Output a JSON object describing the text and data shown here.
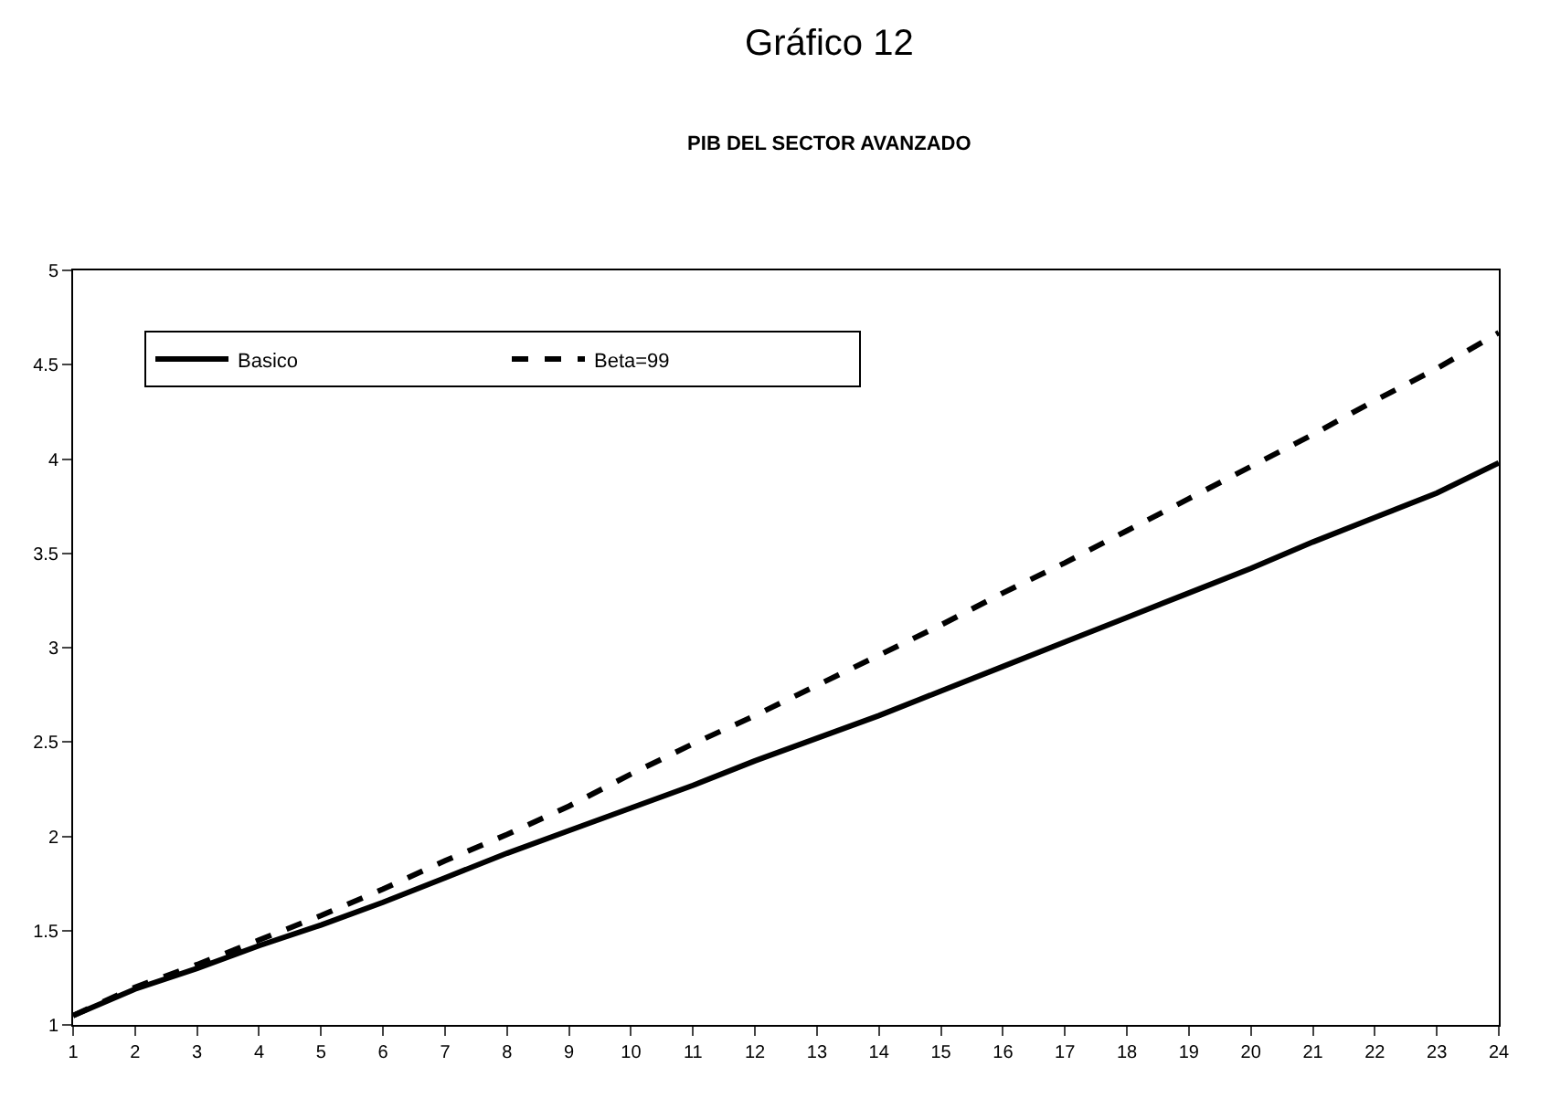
{
  "chart_data": {
    "type": "line",
    "title": "Gráfico 12",
    "subtitle": "PIB DEL SECTOR AVANZADO",
    "x": [
      1,
      2,
      3,
      4,
      5,
      6,
      7,
      8,
      9,
      10,
      11,
      12,
      13,
      14,
      15,
      16,
      17,
      18,
      19,
      20,
      21,
      22,
      23,
      24
    ],
    "xlim": [
      1,
      24
    ],
    "xticks": [
      1,
      2,
      3,
      4,
      5,
      6,
      7,
      8,
      9,
      10,
      11,
      12,
      13,
      14,
      15,
      16,
      17,
      18,
      19,
      20,
      21,
      22,
      23,
      24
    ],
    "ylim": [
      1,
      5
    ],
    "yticks": [
      1,
      1.5,
      2,
      2.5,
      3,
      3.5,
      4,
      4.5,
      5
    ],
    "legend": "top left",
    "marker": "none",
    "series": [
      {
        "name": "Basico",
        "color": "#000000",
        "line_style": "solid",
        "values": [
          1.05,
          1.19,
          1.3,
          1.42,
          1.53,
          1.65,
          1.78,
          1.91,
          2.03,
          2.15,
          2.27,
          2.4,
          2.52,
          2.64,
          2.77,
          2.9,
          3.03,
          3.16,
          3.29,
          3.42,
          3.56,
          3.69,
          3.82,
          3.98
        ]
      },
      {
        "name": "Beta=99",
        "color": "#000000",
        "line_style": "dashed",
        "values": [
          1.05,
          1.2,
          1.32,
          1.45,
          1.58,
          1.72,
          1.87,
          2.01,
          2.16,
          2.33,
          2.49,
          2.64,
          2.8,
          2.96,
          3.12,
          3.29,
          3.45,
          3.62,
          3.79,
          3.96,
          4.13,
          4.31,
          4.48,
          4.67
        ]
      }
    ]
  }
}
